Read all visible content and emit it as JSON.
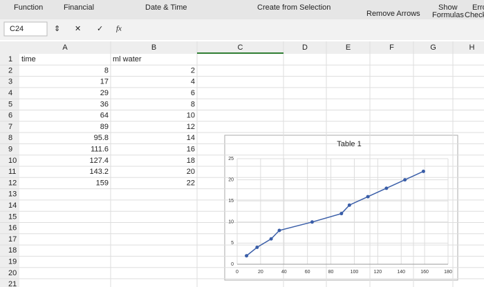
{
  "ribbon": {
    "items": [
      "Function",
      "Financial",
      "Date & Time",
      "Create from Selection",
      "Remove Arrows",
      "Show",
      "Formulas",
      "Erro",
      "Check"
    ]
  },
  "formula_bar": {
    "name_box": "C24",
    "fx": "fx"
  },
  "sheet": {
    "columns": [
      "A",
      "B",
      "C",
      "D",
      "E",
      "F",
      "G",
      "H"
    ],
    "row_headers": [
      "1",
      "2",
      "3",
      "4",
      "5",
      "6",
      "7",
      "8",
      "9",
      "10",
      "11",
      "12",
      "13",
      "14",
      "15",
      "16",
      "17",
      "18",
      "19",
      "20",
      "21"
    ],
    "rows": [
      [
        "time",
        "ml water"
      ],
      [
        "8",
        "2"
      ],
      [
        "17",
        "4"
      ],
      [
        "29",
        "6"
      ],
      [
        "36",
        "8"
      ],
      [
        "64",
        "10"
      ],
      [
        "89",
        "12"
      ],
      [
        "95.8",
        "14"
      ],
      [
        "111.6",
        "16"
      ],
      [
        "127.4",
        "18"
      ],
      [
        "143.2",
        "20"
      ],
      [
        "159",
        "22"
      ]
    ]
  },
  "chart_data": {
    "type": "line",
    "title": "Table 1",
    "x": [
      8,
      17,
      29,
      36,
      64,
      89,
      95.8,
      111.6,
      127.4,
      143.2,
      159
    ],
    "values": [
      2,
      4,
      6,
      8,
      10,
      12,
      14,
      16,
      18,
      20,
      22
    ],
    "color": "#3a5ea8",
    "xlim": [
      0,
      180
    ],
    "xticks": [
      0,
      20,
      40,
      60,
      80,
      100,
      120,
      140,
      160,
      180
    ],
    "ylim": [
      0,
      25
    ],
    "yticks": [
      0,
      5,
      10,
      15,
      20,
      25
    ],
    "grid": true
  }
}
